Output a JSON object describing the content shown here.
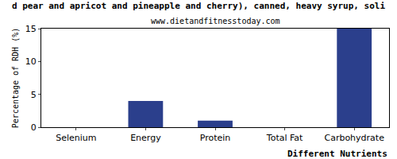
{
  "chart_data": {
    "type": "bar",
    "title": "d pear and apricot and pineapple and cherry), canned, heavy syrup, soli",
    "subtitle": "www.dietandfitnesstoday.com",
    "x_label": "Different Nutrients",
    "y_label": "Percentage of RDH (%)",
    "categories": [
      "Selenium",
      "Energy",
      "Protein",
      "Total Fat",
      "Carbohydrate"
    ],
    "values": [
      0,
      4,
      1,
      0,
      15
    ],
    "color": "#2b3f8c",
    "ylim": [
      0,
      15
    ],
    "yticks": [
      0,
      5,
      10,
      15
    ],
    "grid": false
  }
}
